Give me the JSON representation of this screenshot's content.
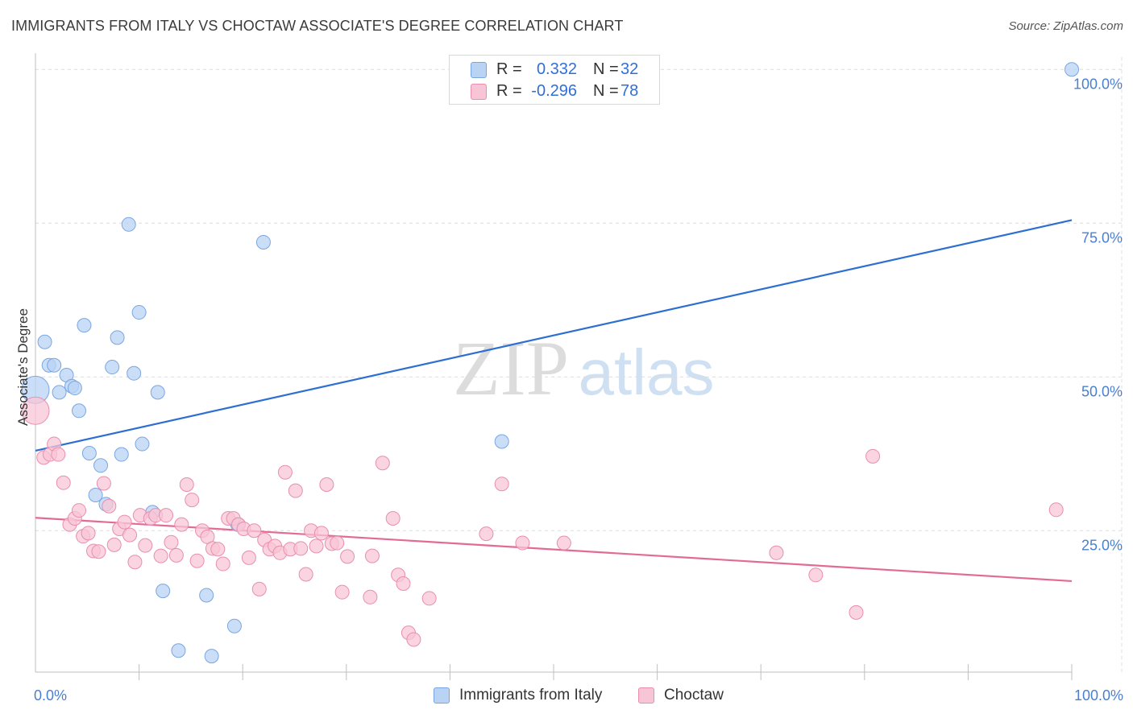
{
  "header": {
    "title": "IMMIGRANTS FROM ITALY VS CHOCTAW ASSOCIATE'S DEGREE CORRELATION CHART",
    "source": "Source: ZipAtlas.com"
  },
  "watermark": {
    "zip": "ZIP",
    "atlas": "atlas"
  },
  "legend_top": {
    "rows": [
      {
        "r_label": "R =",
        "r_value": "0.332",
        "n_label": "N =",
        "n_value": "32"
      },
      {
        "r_label": "R =",
        "r_value": "-0.296",
        "n_label": "N =",
        "n_value": "78"
      }
    ]
  },
  "legend_bottom": {
    "items": [
      {
        "label": "Immigrants from Italy"
      },
      {
        "label": "Choctaw"
      }
    ]
  },
  "colors": {
    "blue_fill": "#b9d3f5",
    "blue_stroke": "#7aa6e0",
    "blue_line": "#2c6fd1",
    "pink_fill": "#f8c5d6",
    "pink_stroke": "#e88fae",
    "pink_line": "#e26b96",
    "axis_label": "#4a7fd0",
    "grid": "#dcdcdc"
  },
  "chart_data": {
    "type": "scatter",
    "title": "IMMIGRANTS FROM ITALY VS CHOCTAW ASSOCIATE'S DEGREE CORRELATION CHART",
    "xlabel": "",
    "ylabel": "Associate's Degree",
    "xlim": [
      0,
      100
    ],
    "ylim": [
      2,
      102
    ],
    "x_tick_labels": [
      "0.0%",
      "100.0%"
    ],
    "y_ticks": [
      25,
      50,
      75,
      100
    ],
    "y_tick_labels": [
      "25.0%",
      "50.0%",
      "75.0%",
      "100.0%"
    ],
    "grid": true,
    "series": [
      {
        "name": "Immigrants from Italy",
        "r": 0.332,
        "n": 32,
        "trend": {
          "x": [
            0,
            100
          ],
          "y": [
            38.0,
            75.5
          ]
        },
        "points": [
          {
            "x": 0.0,
            "y": 47.9,
            "big": true
          },
          {
            "x": 0.9,
            "y": 55.7
          },
          {
            "x": 1.3,
            "y": 51.9
          },
          {
            "x": 1.8,
            "y": 51.9
          },
          {
            "x": 2.3,
            "y": 47.5
          },
          {
            "x": 3.0,
            "y": 50.3
          },
          {
            "x": 3.5,
            "y": 48.5
          },
          {
            "x": 3.8,
            "y": 48.2
          },
          {
            "x": 4.2,
            "y": 44.5
          },
          {
            "x": 4.7,
            "y": 58.4
          },
          {
            "x": 5.2,
            "y": 37.6
          },
          {
            "x": 5.8,
            "y": 30.8
          },
          {
            "x": 6.3,
            "y": 35.6
          },
          {
            "x": 6.8,
            "y": 29.3
          },
          {
            "x": 7.4,
            "y": 51.6
          },
          {
            "x": 7.9,
            "y": 56.4
          },
          {
            "x": 8.3,
            "y": 37.4
          },
          {
            "x": 9.0,
            "y": 74.8
          },
          {
            "x": 9.5,
            "y": 50.6
          },
          {
            "x": 10.0,
            "y": 60.5
          },
          {
            "x": 10.3,
            "y": 39.1
          },
          {
            "x": 11.3,
            "y": 28.0
          },
          {
            "x": 11.8,
            "y": 47.5
          },
          {
            "x": 12.3,
            "y": 15.2
          },
          {
            "x": 13.8,
            "y": 5.5
          },
          {
            "x": 16.5,
            "y": 14.5
          },
          {
            "x": 17.0,
            "y": 4.6
          },
          {
            "x": 19.2,
            "y": 9.5
          },
          {
            "x": 19.5,
            "y": 26.0
          },
          {
            "x": 22.0,
            "y": 71.9
          },
          {
            "x": 45.0,
            "y": 39.5
          },
          {
            "x": 100.0,
            "y": 100.0
          }
        ]
      },
      {
        "name": "Choctaw",
        "r": -0.296,
        "n": 78,
        "trend": {
          "x": [
            0,
            100
          ],
          "y": [
            27.1,
            16.8
          ]
        },
        "points": [
          {
            "x": 0.0,
            "y": 44.5,
            "big": true
          },
          {
            "x": 0.8,
            "y": 36.9
          },
          {
            "x": 1.4,
            "y": 37.4
          },
          {
            "x": 1.8,
            "y": 39.1
          },
          {
            "x": 2.2,
            "y": 37.4
          },
          {
            "x": 2.7,
            "y": 32.8
          },
          {
            "x": 3.3,
            "y": 26.0
          },
          {
            "x": 3.8,
            "y": 27.0
          },
          {
            "x": 4.2,
            "y": 28.3
          },
          {
            "x": 4.6,
            "y": 24.1
          },
          {
            "x": 5.1,
            "y": 24.6
          },
          {
            "x": 5.6,
            "y": 21.7
          },
          {
            "x": 6.1,
            "y": 21.6
          },
          {
            "x": 6.6,
            "y": 32.7
          },
          {
            "x": 7.1,
            "y": 29.0
          },
          {
            "x": 7.6,
            "y": 22.7
          },
          {
            "x": 8.1,
            "y": 25.3
          },
          {
            "x": 8.6,
            "y": 26.4
          },
          {
            "x": 9.1,
            "y": 24.3
          },
          {
            "x": 9.6,
            "y": 19.9
          },
          {
            "x": 10.1,
            "y": 27.5
          },
          {
            "x": 10.6,
            "y": 22.6
          },
          {
            "x": 11.1,
            "y": 27.0
          },
          {
            "x": 11.6,
            "y": 27.5
          },
          {
            "x": 12.1,
            "y": 20.9
          },
          {
            "x": 12.6,
            "y": 27.5
          },
          {
            "x": 13.1,
            "y": 23.1
          },
          {
            "x": 13.6,
            "y": 21.0
          },
          {
            "x": 14.1,
            "y": 26.0
          },
          {
            "x": 14.6,
            "y": 32.5
          },
          {
            "x": 15.1,
            "y": 30.0
          },
          {
            "x": 15.6,
            "y": 20.1
          },
          {
            "x": 16.1,
            "y": 25.0
          },
          {
            "x": 16.6,
            "y": 24.0
          },
          {
            "x": 17.1,
            "y": 22.1
          },
          {
            "x": 17.6,
            "y": 22.0
          },
          {
            "x": 18.1,
            "y": 19.6
          },
          {
            "x": 18.6,
            "y": 27.0
          },
          {
            "x": 19.1,
            "y": 27.0
          },
          {
            "x": 19.6,
            "y": 26.0
          },
          {
            "x": 20.1,
            "y": 25.3
          },
          {
            "x": 20.6,
            "y": 20.6
          },
          {
            "x": 21.1,
            "y": 25.0
          },
          {
            "x": 21.6,
            "y": 15.5
          },
          {
            "x": 22.1,
            "y": 23.5
          },
          {
            "x": 22.6,
            "y": 22.0
          },
          {
            "x": 23.1,
            "y": 22.5
          },
          {
            "x": 23.6,
            "y": 21.4
          },
          {
            "x": 24.1,
            "y": 34.5
          },
          {
            "x": 24.6,
            "y": 22.0
          },
          {
            "x": 25.1,
            "y": 31.5
          },
          {
            "x": 25.6,
            "y": 22.1
          },
          {
            "x": 26.1,
            "y": 17.9
          },
          {
            "x": 26.6,
            "y": 25.0
          },
          {
            "x": 27.1,
            "y": 22.5
          },
          {
            "x": 27.6,
            "y": 24.6
          },
          {
            "x": 28.1,
            "y": 32.5
          },
          {
            "x": 28.6,
            "y": 22.9
          },
          {
            "x": 29.1,
            "y": 23.0
          },
          {
            "x": 29.6,
            "y": 15.0
          },
          {
            "x": 30.1,
            "y": 20.8
          },
          {
            "x": 32.3,
            "y": 14.2
          },
          {
            "x": 32.5,
            "y": 20.9
          },
          {
            "x": 33.5,
            "y": 36.0
          },
          {
            "x": 34.5,
            "y": 27.0
          },
          {
            "x": 35.0,
            "y": 17.8
          },
          {
            "x": 35.5,
            "y": 16.4
          },
          {
            "x": 36.0,
            "y": 8.4
          },
          {
            "x": 36.5,
            "y": 7.3
          },
          {
            "x": 38.0,
            "y": 14.0
          },
          {
            "x": 43.5,
            "y": 24.5
          },
          {
            "x": 45.0,
            "y": 32.6
          },
          {
            "x": 47.0,
            "y": 23.0
          },
          {
            "x": 51.0,
            "y": 23.0
          },
          {
            "x": 71.5,
            "y": 21.4
          },
          {
            "x": 75.3,
            "y": 17.8
          },
          {
            "x": 79.2,
            "y": 11.7
          },
          {
            "x": 80.8,
            "y": 37.1
          },
          {
            "x": 98.5,
            "y": 28.4
          }
        ]
      }
    ]
  }
}
